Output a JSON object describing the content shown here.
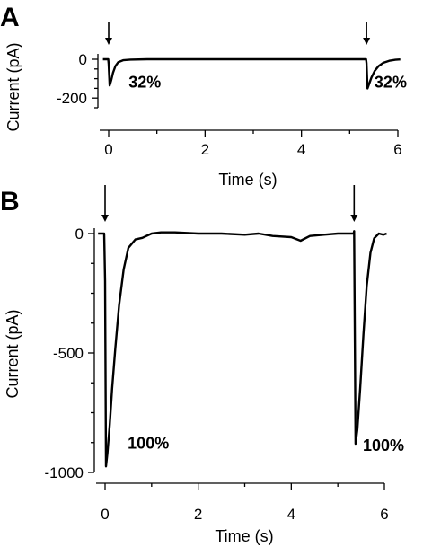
{
  "chart_data": [
    {
      "panel": "A",
      "type": "line",
      "xlabel": "Time (s)",
      "ylabel": "Current (pA)",
      "xticks": [
        0,
        2,
        4,
        6
      ],
      "yticks": [
        0,
        -200
      ],
      "xlim": [
        0,
        6
      ],
      "ylim": [
        -250,
        0
      ],
      "stimulus_times": [
        0,
        5.35
      ],
      "annotations": [
        {
          "text": "32%",
          "x": 0.75,
          "y": -145
        },
        {
          "text": "32%",
          "x": 5.85,
          "y": -145
        }
      ],
      "series": [
        {
          "x": [
            -0.12,
            -0.01,
            0.0,
            0.02,
            0.05,
            0.09,
            0.14,
            0.2,
            0.3,
            0.45,
            0.8,
            1.5,
            2.5,
            3.5,
            4.5,
            5.3,
            5.34,
            5.35,
            5.37,
            5.4,
            5.45,
            5.52,
            5.6,
            5.7,
            5.82,
            5.95,
            6.05
          ],
          "y": [
            0,
            0,
            -25,
            -135,
            -110,
            -70,
            -35,
            -15,
            -5,
            -2,
            0,
            0,
            0,
            0,
            0,
            0,
            0,
            -20,
            -150,
            -130,
            -95,
            -60,
            -35,
            -18,
            -8,
            -3,
            -1
          ]
        }
      ]
    },
    {
      "panel": "B",
      "type": "line",
      "xlabel": "Time (s)",
      "ylabel": "Current (pA)",
      "xticks": [
        0,
        2,
        4,
        6
      ],
      "yticks": [
        0,
        -500,
        -1000
      ],
      "xlim": [
        0,
        6
      ],
      "ylim": [
        -1000,
        0
      ],
      "stimulus_times": [
        0,
        5.35
      ],
      "annotations": [
        {
          "text": "100%",
          "x": 0.93,
          "y": -900
        },
        {
          "text": "100%",
          "x": 5.98,
          "y": -910
        }
      ],
      "series": [
        {
          "x": [
            -0.15,
            -0.02,
            0.0,
            0.02,
            0.05,
            0.1,
            0.15,
            0.22,
            0.3,
            0.4,
            0.5,
            0.65,
            0.8,
            1.0,
            1.2,
            1.5,
            2.0,
            2.5,
            3.0,
            3.3,
            3.6,
            4.0,
            4.2,
            4.4,
            4.7,
            5.0,
            5.3,
            5.34,
            5.35,
            5.38,
            5.42,
            5.48,
            5.55,
            5.62,
            5.7,
            5.78,
            5.88,
            5.98,
            6.05
          ],
          "y": [
            0,
            0,
            -200,
            -975,
            -920,
            -800,
            -650,
            -480,
            -300,
            -150,
            -60,
            -25,
            -18,
            0,
            5,
            5,
            0,
            0,
            -5,
            0,
            -10,
            -15,
            -30,
            -10,
            -5,
            0,
            0,
            0,
            10,
            -880,
            -820,
            -650,
            -420,
            -220,
            -80,
            -20,
            0,
            -5,
            0
          ]
        }
      ]
    }
  ]
}
